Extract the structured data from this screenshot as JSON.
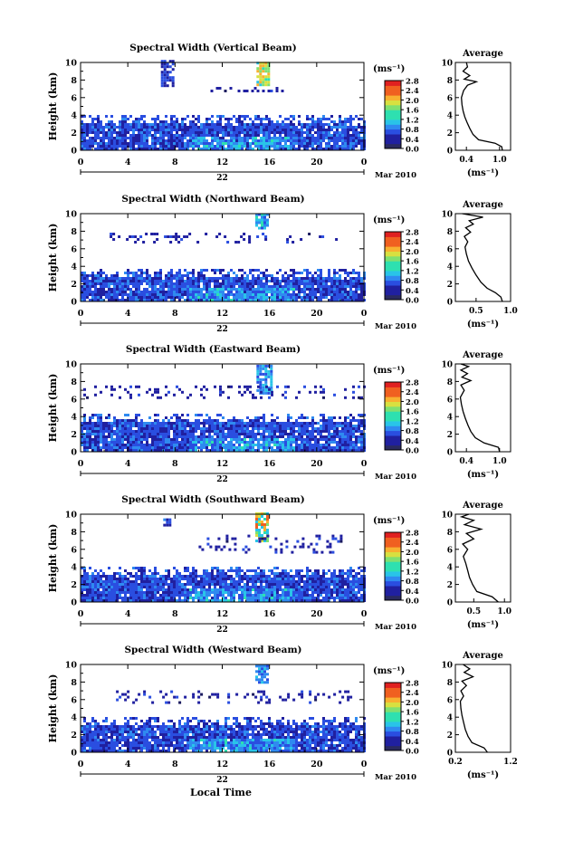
{
  "figure": {
    "x_axis_title": "Local Time",
    "date_label": "22",
    "month_label": "Mar 2010",
    "y_axis_title": "Height (km)",
    "colorbar_unit": "(ms⁻¹)",
    "average_title": "Average",
    "average_unit": "(ms⁻¹)"
  },
  "colors": {
    "scale": [
      "#1a1a5e",
      "#2020a0",
      "#2a4ee0",
      "#2f8af0",
      "#29c4e8",
      "#2ee0b0",
      "#80e070",
      "#d8e040",
      "#f8b030",
      "#f06020",
      "#e02020"
    ]
  },
  "chart_data": [
    {
      "type": "heatmap",
      "title": "Spectral Width (Vertical Beam)",
      "xlabel": "",
      "ylabel": "Height (km)",
      "xlim": [
        0,
        24
      ],
      "ylim": [
        0,
        10
      ],
      "x_ticks": [
        "0",
        "4",
        "8",
        "12",
        "16",
        "20",
        "0"
      ],
      "y_ticks": [
        "0",
        "2",
        "4",
        "6",
        "8",
        "10"
      ],
      "colorbar": {
        "label": "(ms⁻¹)",
        "range": [
          0,
          2.8
        ],
        "ticks": [
          "0.0",
          "0.4",
          "0.8",
          "1.2",
          "1.6",
          "2.0",
          "2.4",
          "2.8"
        ]
      },
      "features": [
        {
          "kind": "echo-layer",
          "hours": [
            0,
            24
          ],
          "heights_km": [
            0,
            4
          ],
          "value": 0.6
        },
        {
          "kind": "cell",
          "hours": [
            6.8,
            7.9
          ],
          "heights_km": [
            7.2,
            10
          ],
          "value": 0.5
        },
        {
          "kind": "cell",
          "hours": [
            14.9,
            15.9
          ],
          "heights_km": [
            7.3,
            9.9
          ],
          "value": 1.6
        },
        {
          "kind": "layer",
          "hours": [
            11,
            18
          ],
          "heights_km": [
            6.6,
            7.2
          ],
          "value": 0.4
        }
      ],
      "average": {
        "title": "Average",
        "xlabel": "(ms⁻¹)",
        "xlim": [
          0.2,
          1.2
        ],
        "x_ticks": [
          "0.4",
          "1.0"
        ],
        "ylim": [
          0,
          10
        ],
        "profile": [
          {
            "h": 0,
            "w": 1.05
          },
          {
            "h": 0.4,
            "w": 1.04
          },
          {
            "h": 0.8,
            "w": 0.92
          },
          {
            "h": 1.2,
            "w": 0.62
          },
          {
            "h": 1.8,
            "w": 0.52
          },
          {
            "h": 2.5,
            "w": 0.46
          },
          {
            "h": 3.2,
            "w": 0.41
          },
          {
            "h": 3.8,
            "w": 0.37
          },
          {
            "h": 4.5,
            "w": 0.34
          },
          {
            "h": 5.2,
            "w": 0.32
          },
          {
            "h": 6.0,
            "w": 0.31
          },
          {
            "h": 6.8,
            "w": 0.35
          },
          {
            "h": 7.4,
            "w": 0.42
          },
          {
            "h": 7.8,
            "w": 0.58
          },
          {
            "h": 8.1,
            "w": 0.36
          },
          {
            "h": 8.5,
            "w": 0.46
          },
          {
            "h": 9.0,
            "w": 0.34
          },
          {
            "h": 9.5,
            "w": 0.42
          },
          {
            "h": 10,
            "w": 0.4
          }
        ]
      }
    },
    {
      "type": "heatmap",
      "title": "Spectral Width (Northward Beam)",
      "xlabel": "",
      "ylabel": "Height (km)",
      "xlim": [
        0,
        24
      ],
      "ylim": [
        0,
        10
      ],
      "x_ticks": [
        "0",
        "4",
        "8",
        "12",
        "16",
        "20",
        "0"
      ],
      "y_ticks": [
        "0",
        "2",
        "4",
        "6",
        "8",
        "10"
      ],
      "colorbar": {
        "label": "(ms⁻¹)",
        "range": [
          0,
          2.8
        ],
        "ticks": [
          "0.0",
          "0.4",
          "0.8",
          "1.2",
          "1.6",
          "2.0",
          "2.4",
          "2.8"
        ]
      },
      "features": [
        {
          "kind": "echo-layer",
          "hours": [
            0,
            24
          ],
          "heights_km": [
            0,
            3.6
          ],
          "value": 0.6
        },
        {
          "kind": "cell",
          "hours": [
            14.8,
            15.8
          ],
          "heights_km": [
            8.2,
            9.9
          ],
          "value": 1.0
        },
        {
          "kind": "layer",
          "hours": [
            2,
            22
          ],
          "heights_km": [
            6.6,
            7.6
          ],
          "value": 0.4
        }
      ],
      "average": {
        "title": "Average",
        "xlabel": "(ms⁻¹)",
        "xlim": [
          0.2,
          1.0
        ],
        "x_ticks": [
          "0.5",
          "1.0"
        ],
        "ylim": [
          0,
          10
        ],
        "profile": [
          {
            "h": 0,
            "w": 0.88
          },
          {
            "h": 0.5,
            "w": 0.86
          },
          {
            "h": 1.0,
            "w": 0.78
          },
          {
            "h": 1.5,
            "w": 0.66
          },
          {
            "h": 2.2,
            "w": 0.57
          },
          {
            "h": 3.0,
            "w": 0.5
          },
          {
            "h": 3.8,
            "w": 0.44
          },
          {
            "h": 4.6,
            "w": 0.39
          },
          {
            "h": 5.4,
            "w": 0.36
          },
          {
            "h": 6.2,
            "w": 0.34
          },
          {
            "h": 6.8,
            "w": 0.38
          },
          {
            "h": 7.4,
            "w": 0.33
          },
          {
            "h": 7.9,
            "w": 0.42
          },
          {
            "h": 8.4,
            "w": 0.35
          },
          {
            "h": 8.8,
            "w": 0.46
          },
          {
            "h": 9.2,
            "w": 0.4
          },
          {
            "h": 9.6,
            "w": 0.6
          },
          {
            "h": 10,
            "w": 0.3
          }
        ]
      }
    },
    {
      "type": "heatmap",
      "title": "Spectral Width (Eastward Beam)",
      "xlabel": "",
      "ylabel": "Height (km)",
      "xlim": [
        0,
        24
      ],
      "ylim": [
        0,
        10
      ],
      "x_ticks": [
        "0",
        "4",
        "8",
        "12",
        "16",
        "20",
        "0"
      ],
      "y_ticks": [
        "0",
        "2",
        "4",
        "6",
        "8",
        "10"
      ],
      "colorbar": {
        "label": "(ms⁻¹)",
        "range": [
          0,
          2.8
        ],
        "ticks": [
          "0.0",
          "0.4",
          "0.8",
          "1.2",
          "1.6",
          "2.0",
          "2.4",
          "2.8"
        ]
      },
      "features": [
        {
          "kind": "echo-layer",
          "hours": [
            0,
            24
          ],
          "heights_km": [
            0,
            4.2
          ],
          "value": 0.6
        },
        {
          "kind": "cell",
          "hours": [
            14.9,
            16.1
          ],
          "heights_km": [
            6.5,
            9.9
          ],
          "value": 0.9
        },
        {
          "kind": "layer",
          "hours": [
            0,
            24
          ],
          "heights_km": [
            6.0,
            7.5
          ],
          "value": 0.4
        }
      ],
      "average": {
        "title": "Average",
        "xlabel": "(ms⁻¹)",
        "xlim": [
          0.2,
          1.2
        ],
        "x_ticks": [
          "0.4",
          "1.0"
        ],
        "ylim": [
          0,
          10
        ],
        "profile": [
          {
            "h": 0,
            "w": 1.0
          },
          {
            "h": 0.5,
            "w": 0.98
          },
          {
            "h": 1.0,
            "w": 0.72
          },
          {
            "h": 1.6,
            "w": 0.56
          },
          {
            "h": 2.3,
            "w": 0.48
          },
          {
            "h": 3.0,
            "w": 0.43
          },
          {
            "h": 3.8,
            "w": 0.38
          },
          {
            "h": 4.6,
            "w": 0.34
          },
          {
            "h": 5.4,
            "w": 0.31
          },
          {
            "h": 6.2,
            "w": 0.29
          },
          {
            "h": 7.0,
            "w": 0.36
          },
          {
            "h": 7.6,
            "w": 0.3
          },
          {
            "h": 8.1,
            "w": 0.48
          },
          {
            "h": 8.5,
            "w": 0.32
          },
          {
            "h": 8.9,
            "w": 0.42
          },
          {
            "h": 9.3,
            "w": 0.3
          },
          {
            "h": 9.7,
            "w": 0.44
          },
          {
            "h": 10,
            "w": 0.3
          }
        ]
      }
    },
    {
      "type": "heatmap",
      "title": "Spectral Width (Southward Beam)",
      "xlabel": "",
      "ylabel": "Height (km)",
      "xlim": [
        0,
        24
      ],
      "ylim": [
        0,
        10
      ],
      "x_ticks": [
        "0",
        "4",
        "8",
        "12",
        "16",
        "20",
        "0"
      ],
      "y_ticks": [
        "0",
        "2",
        "4",
        "6",
        "8",
        "10"
      ],
      "colorbar": {
        "label": "(ms⁻¹)",
        "range": [
          0,
          2.8
        ],
        "ticks": [
          "0.0",
          "0.4",
          "0.8",
          "1.2",
          "1.6",
          "2.0",
          "2.4",
          "2.8"
        ]
      },
      "features": [
        {
          "kind": "echo-layer",
          "hours": [
            0,
            24
          ],
          "heights_km": [
            0,
            4.0
          ],
          "value": 0.6
        },
        {
          "kind": "cell",
          "hours": [
            7.0,
            7.6
          ],
          "heights_km": [
            8.6,
            9.4
          ],
          "value": 0.6
        },
        {
          "kind": "cell",
          "hours": [
            14.8,
            15.9
          ],
          "heights_km": [
            6.8,
            9.9
          ],
          "value": 1.8
        },
        {
          "kind": "layer",
          "hours": [
            10,
            22
          ],
          "heights_km": [
            5.5,
            7.5
          ],
          "value": 0.4
        }
      ],
      "average": {
        "title": "Average",
        "xlabel": "(ms⁻¹)",
        "xlim": [
          0.2,
          1.1
        ],
        "x_ticks": [
          "0.5",
          "1.0"
        ],
        "ylim": [
          0,
          10
        ],
        "profile": [
          {
            "h": 0,
            "w": 0.9
          },
          {
            "h": 0.6,
            "w": 0.8
          },
          {
            "h": 1.2,
            "w": 0.55
          },
          {
            "h": 2.0,
            "w": 0.48
          },
          {
            "h": 2.8,
            "w": 0.43
          },
          {
            "h": 3.6,
            "w": 0.4
          },
          {
            "h": 4.4,
            "w": 0.37
          },
          {
            "h": 5.2,
            "w": 0.33
          },
          {
            "h": 6.0,
            "w": 0.4
          },
          {
            "h": 6.6,
            "w": 0.32
          },
          {
            "h": 7.2,
            "w": 0.5
          },
          {
            "h": 7.8,
            "w": 0.38
          },
          {
            "h": 8.3,
            "w": 0.62
          },
          {
            "h": 8.8,
            "w": 0.35
          },
          {
            "h": 9.3,
            "w": 0.5
          },
          {
            "h": 9.7,
            "w": 0.3
          },
          {
            "h": 10,
            "w": 0.42
          }
        ]
      }
    },
    {
      "type": "heatmap",
      "title": "Spectral Width (Westward Beam)",
      "xlabel": "Local Time",
      "ylabel": "Height (km)",
      "xlim": [
        0,
        24
      ],
      "ylim": [
        0,
        10
      ],
      "x_ticks": [
        "0",
        "4",
        "8",
        "12",
        "16",
        "20",
        "0"
      ],
      "y_ticks": [
        "0",
        "2",
        "4",
        "6",
        "8",
        "10"
      ],
      "colorbar": {
        "label": "(ms⁻¹)",
        "range": [
          0,
          2.8
        ],
        "ticks": [
          "0.0",
          "0.4",
          "0.8",
          "1.2",
          "1.6",
          "2.0",
          "2.4",
          "2.8"
        ]
      },
      "features": [
        {
          "kind": "echo-layer",
          "hours": [
            0,
            24
          ],
          "heights_km": [
            0,
            4.0
          ],
          "value": 0.6
        },
        {
          "kind": "cell",
          "hours": [
            14.8,
            15.8
          ],
          "heights_km": [
            7.8,
            9.9
          ],
          "value": 0.9
        },
        {
          "kind": "layer",
          "hours": [
            3,
            23
          ],
          "heights_km": [
            5.5,
            7.0
          ],
          "value": 0.4
        }
      ],
      "average": {
        "title": "Average",
        "xlabel": "(ms⁻¹)",
        "xlim": [
          0.2,
          1.2
        ],
        "x_ticks": [
          "0.2",
          "1.2"
        ],
        "ylim": [
          0,
          10
        ],
        "profile": [
          {
            "h": 0,
            "w": 0.78
          },
          {
            "h": 0.5,
            "w": 0.72
          },
          {
            "h": 1.1,
            "w": 0.5
          },
          {
            "h": 1.8,
            "w": 0.43
          },
          {
            "h": 2.6,
            "w": 0.38
          },
          {
            "h": 3.4,
            "w": 0.35
          },
          {
            "h": 4.2,
            "w": 0.32
          },
          {
            "h": 5.0,
            "w": 0.3
          },
          {
            "h": 5.8,
            "w": 0.29
          },
          {
            "h": 6.4,
            "w": 0.35
          },
          {
            "h": 7.0,
            "w": 0.3
          },
          {
            "h": 7.6,
            "w": 0.4
          },
          {
            "h": 8.1,
            "w": 0.32
          },
          {
            "h": 8.6,
            "w": 0.52
          },
          {
            "h": 9.1,
            "w": 0.36
          },
          {
            "h": 9.5,
            "w": 0.46
          },
          {
            "h": 10,
            "w": 0.34
          }
        ]
      }
    }
  ]
}
